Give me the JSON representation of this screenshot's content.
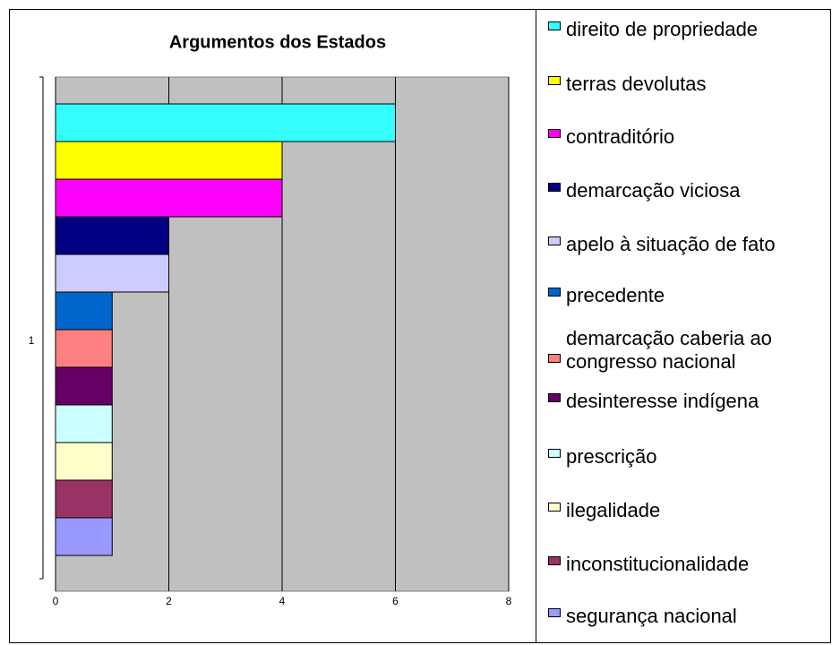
{
  "chart_data": {
    "type": "bar",
    "orientation": "horizontal",
    "title": "Argumentos dos Estados",
    "categories": [
      "1"
    ],
    "series": [
      {
        "name": "direito de propriedade",
        "color": "#33ffff",
        "values": [
          6
        ]
      },
      {
        "name": "terras devolutas",
        "color": "#ffff00",
        "values": [
          4
        ]
      },
      {
        "name": "contraditório",
        "color": "#ff00ff",
        "values": [
          4
        ]
      },
      {
        "name": "demarcação viciosa",
        "color": "#000080",
        "values": [
          2
        ]
      },
      {
        "name": "apelo à situação de fato",
        "color": "#ccccff",
        "values": [
          2
        ]
      },
      {
        "name": "precedente",
        "color": "#0066cc",
        "values": [
          1
        ]
      },
      {
        "name": "demarcação caberia ao congresso nacional",
        "color": "#ff8080",
        "values": [
          1
        ]
      },
      {
        "name": "desinteresse indígena",
        "color": "#660066",
        "values": [
          1
        ]
      },
      {
        "name": "prescrição",
        "color": "#ccffff",
        "values": [
          1
        ]
      },
      {
        "name": "ilegalidade",
        "color": "#ffffcc",
        "values": [
          1
        ]
      },
      {
        "name": "inconstitucionalidade",
        "color": "#993366",
        "values": [
          1
        ]
      },
      {
        "name": "segurança nacional",
        "color": "#9999ff",
        "values": [
          1
        ]
      }
    ],
    "xlim": [
      0,
      8
    ],
    "xticks": [
      0,
      2,
      4,
      6,
      8
    ],
    "grid": true,
    "legend": "right"
  }
}
